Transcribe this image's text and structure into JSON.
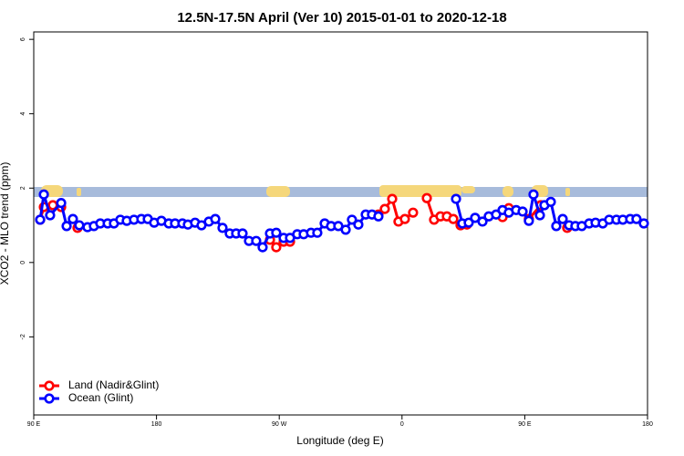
{
  "chart_data": {
    "type": "line",
    "title": "12.5N-17.5N April (Ver 10)   2015-01-01 to 2020-12-18",
    "xlabel": "Longitude (deg E)",
    "ylabel": "XCO2 - MLO trend (ppm)",
    "xlim": [
      90,
      540
    ],
    "ylim": [
      -4.1,
      6.2
    ],
    "xticks": [
      {
        "value": 90,
        "label": "90 E"
      },
      180,
      {
        "value": 270,
        "label": "90 W"
      },
      {
        "value": 360,
        "label": "0"
      },
      {
        "value": 450,
        "label": "90 E"
      },
      {
        "value": 540,
        "label": "180"
      }
    ],
    "yticks": [
      -2,
      0,
      2,
      4,
      6
    ],
    "legend": "bottom-left",
    "series": [
      {
        "name": "Land (Nadir&Glint)",
        "color": "#ff0000",
        "x": [
          94.7,
          97.4,
          104.0,
          110.1,
          null,
          122.1,
          null,
          263.2,
          267.8,
          273.2,
          277.9,
          null,
          342.7,
          347.4,
          352.8,
          357.4,
          362.1,
          368.1,
          null,
          378.2,
          383.5,
          388.2,
          392.9,
          397.6,
          402.9,
          407.6,
          null,
          433.7,
          438.3,
          null,
          453.0,
          461.7,
          null,
          481.1
        ],
        "values": [
          1.15,
          1.49,
          1.54,
          1.49,
          null,
          0.93,
          null,
          0.61,
          0.41,
          0.56,
          0.56,
          null,
          1.29,
          1.44,
          1.71,
          1.1,
          1.17,
          1.34,
          null,
          1.73,
          1.15,
          1.24,
          1.24,
          1.17,
          1.0,
          1.02,
          null,
          1.22,
          1.46,
          null,
          1.17,
          1.54,
          null,
          0.93
        ]
      },
      {
        "name": "Ocean (Glint)",
        "color": "#0000ff",
        "x": [
          94.7,
          97.4,
          102.0,
          110.1,
          114.1,
          118.7,
          123.4,
          129.4,
          134.1,
          138.8,
          144.2,
          148.8,
          153.5,
          158.2,
          163.5,
          168.9,
          173.6,
          178.3,
          183.6,
          189.0,
          193.6,
          199.0,
          203.0,
          208.3,
          213.0,
          218.4,
          223.1,
          228.4,
          233.7,
          238.4,
          243.1,
          247.8,
          253.1,
          257.8,
          263.2,
          267.8,
          273.2,
          277.9,
          283.2,
          287.9,
          293.3,
          297.9,
          303.3,
          308.0,
          313.3,
          318.7,
          323.3,
          328.0,
          333.4,
          338.0,
          342.7,
          null,
          399.6,
          404.2,
          408.9,
          413.6,
          419.0,
          423.6,
          429.0,
          433.7,
          438.3,
          443.7,
          448.4,
          453.0,
          456.4,
          461.1,
          464.4,
          469.1,
          473.1,
          477.8,
          482.5,
          487.1,
          491.8,
          497.2,
          501.9,
          507.2,
          511.9,
          517.2,
          521.9,
          527.3,
          531.9,
          537.3
        ],
        "values": [
          1.15,
          1.83,
          1.27,
          1.6,
          0.98,
          1.17,
          1.0,
          0.95,
          0.98,
          1.05,
          1.05,
          1.05,
          1.15,
          1.12,
          1.15,
          1.17,
          1.17,
          1.07,
          1.12,
          1.05,
          1.05,
          1.05,
          1.02,
          1.07,
          1.0,
          1.1,
          1.17,
          0.93,
          0.78,
          0.78,
          0.78,
          0.58,
          0.58,
          0.41,
          0.78,
          0.8,
          0.66,
          0.66,
          0.76,
          0.76,
          0.8,
          0.8,
          1.05,
          0.98,
          0.98,
          0.88,
          1.15,
          1.02,
          1.29,
          1.29,
          1.24,
          null,
          1.71,
          1.05,
          1.07,
          1.2,
          1.1,
          1.24,
          1.29,
          1.41,
          1.34,
          1.41,
          1.37,
          1.12,
          1.83,
          1.27,
          1.54,
          1.63,
          0.98,
          1.17,
          1.0,
          0.98,
          0.98,
          1.05,
          1.07,
          1.05,
          1.15,
          1.15,
          1.15,
          1.17,
          1.17,
          1.05
        ]
      }
    ]
  }
}
